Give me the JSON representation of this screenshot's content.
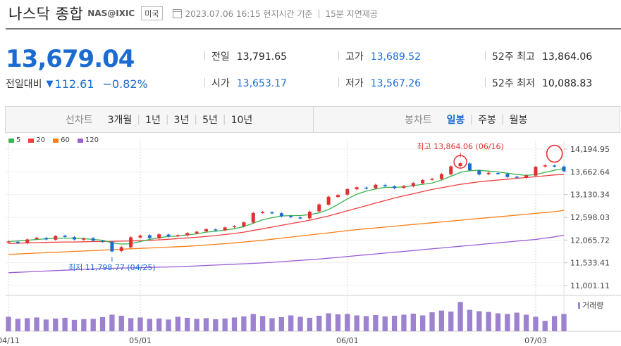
{
  "header": {
    "title": "나스닥 종합",
    "code": "NAS@IXIC",
    "market_badge": "미국",
    "datetime": "2023.07.06 16:15 현지시간 기준",
    "delay_note": "15분 지연제공"
  },
  "quote": {
    "price": "13,679.04",
    "change_label": "전일대비",
    "change_arrow": "▼",
    "change_value": "112.61",
    "change_pct": "−0.82%"
  },
  "stats": {
    "prev_close_label": "전일",
    "prev_close": "13,791.65",
    "open_label": "시가",
    "open": "13,653.17",
    "high_label": "고가",
    "high": "13,689.52",
    "low_label": "저가",
    "low": "13,567.26",
    "high52_label": "52주 최고",
    "high52": "13,864.06",
    "low52_label": "52주 최저",
    "low52": "10,088.83"
  },
  "tabs": {
    "line_label": "선차트",
    "line_periods": [
      "3개월",
      "1년",
      "3년",
      "5년",
      "10년"
    ],
    "candle_label": "봉차트",
    "candle_periods": [
      "일봉",
      "주봉",
      "월봉"
    ],
    "selected_candle": "일봉"
  },
  "legend": [
    {
      "name": "5",
      "color": "#37b24d"
    },
    {
      "name": "20",
      "color": "#f03e3e"
    },
    {
      "name": "60",
      "color": "#fd7e14"
    },
    {
      "name": "120",
      "color": "#9c5dd6"
    }
  ],
  "annotations": {
    "max_label": "최고 13,864.06 (06/16)",
    "min_label": "최저 11,798.77 (04/25)"
  },
  "volume_label": "거래량",
  "colors": {
    "up": "#e03131",
    "down": "#1c6bd0",
    "accent": "#1c6bd0"
  },
  "chart_data": {
    "type": "candlestick",
    "y_ticks": [
      "14,194.95",
      "13,662.64",
      "13,130.34",
      "12,598.03",
      "12,065.72",
      "11,533.41",
      "11,001.11"
    ],
    "ylim": [
      11001.11,
      14194.95
    ],
    "x_ticks": [
      {
        "label": "04/11",
        "index": 0
      },
      {
        "label": "05/01",
        "index": 14
      },
      {
        "label": "06/01",
        "index": 36
      },
      {
        "label": "07/03",
        "index": 56
      }
    ],
    "series": [
      {
        "name": "close",
        "values": [
          12031,
          12000,
          12080,
          12120,
          12080,
          12160,
          12140,
          12080,
          12100,
          12050,
          12030,
          11800,
          11900,
          12130,
          12170,
          12110,
          12200,
          12150,
          12180,
          12230,
          12260,
          12320,
          12300,
          12360,
          12390,
          12480,
          12700,
          12720,
          12700,
          12620,
          12600,
          12580,
          12730,
          12900,
          13080,
          13120,
          13260,
          13300,
          13270,
          13360,
          13330,
          13280,
          13330,
          13400,
          13470,
          13500,
          13610,
          13790,
          13864,
          13700,
          13600,
          13640,
          13620,
          13540,
          13530,
          13580,
          13780,
          13816,
          13791,
          13679
        ]
      },
      {
        "name": "ma5",
        "values": [
          12030,
          12045,
          12060,
          12080,
          12095,
          12105,
          12110,
          12110,
          12100,
          12080,
          12060,
          12000,
          11970,
          11980,
          12030,
          12080,
          12120,
          12150,
          12160,
          12190,
          12210,
          12250,
          12270,
          12300,
          12330,
          12380,
          12460,
          12540,
          12590,
          12630,
          12640,
          12640,
          12660,
          12700,
          12780,
          12900,
          13030,
          13140,
          13210,
          13260,
          13300,
          13300,
          13310,
          13340,
          13370,
          13400,
          13470,
          13560,
          13650,
          13690,
          13700,
          13680,
          13660,
          13630,
          13600,
          13580,
          13600,
          13650,
          13700,
          13740
        ]
      },
      {
        "name": "ma20",
        "values": [
          11980,
          11990,
          12000,
          12005,
          12010,
          12015,
          12020,
          12020,
          12025,
          12030,
          12030,
          12035,
          12040,
          12045,
          12050,
          12060,
          12070,
          12085,
          12100,
          12115,
          12130,
          12150,
          12170,
          12195,
          12220,
          12250,
          12290,
          12330,
          12370,
          12410,
          12450,
          12490,
          12530,
          12580,
          12630,
          12690,
          12750,
          12810,
          12870,
          12930,
          12990,
          13050,
          13100,
          13150,
          13200,
          13250,
          13290,
          13330,
          13370,
          13400,
          13430,
          13450,
          13470,
          13490,
          13510,
          13530,
          13550,
          13570,
          13590,
          13600
        ]
      },
      {
        "name": "ma60",
        "values": [
          11730,
          11740,
          11750,
          11760,
          11770,
          11780,
          11790,
          11800,
          11810,
          11820,
          11830,
          11840,
          11850,
          11860,
          11870,
          11880,
          11890,
          11900,
          11910,
          11920,
          11935,
          11950,
          11965,
          11980,
          12000,
          12020,
          12040,
          12060,
          12085,
          12110,
          12135,
          12160,
          12185,
          12210,
          12235,
          12260,
          12285,
          12310,
          12330,
          12350,
          12370,
          12390,
          12410,
          12430,
          12450,
          12470,
          12490,
          12510,
          12530,
          12550,
          12570,
          12590,
          12610,
          12630,
          12650,
          12670,
          12690,
          12710,
          12730,
          12760
        ]
      },
      {
        "name": "ma120",
        "values": [
          11300,
          11310,
          11320,
          11330,
          11340,
          11350,
          11360,
          11370,
          11380,
          11390,
          11400,
          11405,
          11410,
          11415,
          11420,
          11425,
          11430,
          11435,
          11440,
          11450,
          11460,
          11470,
          11480,
          11490,
          11500,
          11510,
          11520,
          11530,
          11545,
          11560,
          11575,
          11590,
          11605,
          11620,
          11640,
          11660,
          11680,
          11700,
          11720,
          11740,
          11760,
          11780,
          11800,
          11820,
          11840,
          11860,
          11880,
          11900,
          11920,
          11940,
          11960,
          11980,
          12000,
          12020,
          12040,
          12060,
          12080,
          12110,
          12140,
          12180
        ]
      },
      {
        "name": "volume",
        "values": [
          0.42,
          0.36,
          0.38,
          0.4,
          0.34,
          0.37,
          0.39,
          0.33,
          0.35,
          0.36,
          0.41,
          0.48,
          0.45,
          0.38,
          0.4,
          0.36,
          0.37,
          0.34,
          0.42,
          0.39,
          0.36,
          0.38,
          0.35,
          0.37,
          0.4,
          0.43,
          0.5,
          0.44,
          0.38,
          0.41,
          0.46,
          0.42,
          0.39,
          0.45,
          0.52,
          0.49,
          0.5,
          0.46,
          0.44,
          0.47,
          0.43,
          0.45,
          0.48,
          0.51,
          0.46,
          0.55,
          0.6,
          0.57,
          0.85,
          0.62,
          0.58,
          0.56,
          0.52,
          0.5,
          0.54,
          0.48,
          0.42,
          0.3,
          0.44,
          0.5
        ]
      }
    ]
  }
}
